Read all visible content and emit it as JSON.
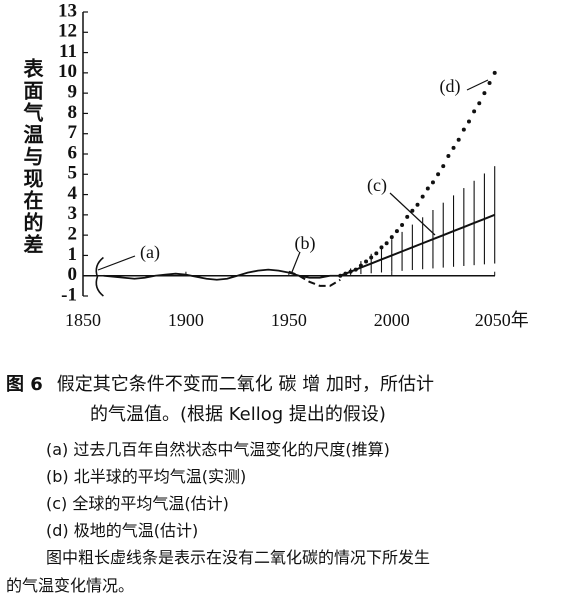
{
  "chart_data": {
    "type": "line",
    "y_label": "表面气温与现在的差",
    "xlim": [
      1850,
      2055
    ],
    "ylim": [
      -1,
      13
    ],
    "xticks": [
      1850,
      1900,
      1950,
      2000,
      {
        "value": 2050,
        "label": "2050年"
      }
    ],
    "yticks": [
      -1,
      0,
      1,
      2,
      3,
      4,
      5,
      6,
      7,
      8,
      9,
      10,
      11,
      12,
      13
    ],
    "series": [
      {
        "name": "(a)",
        "style": "range",
        "color": "#111",
        "x": [
          1857
        ],
        "low": [
          -1
        ],
        "high": [
          0.9
        ]
      },
      {
        "name": "(b)",
        "style": "solid",
        "color": "#111",
        "x": [
          1860,
          1865,
          1870,
          1875,
          1880,
          1885,
          1890,
          1895,
          1900,
          1905,
          1910,
          1915,
          1920,
          1925,
          1930,
          1935,
          1940,
          1945,
          1950,
          1955,
          1960,
          1965,
          1970,
          1975
        ],
        "values": [
          0,
          -0.05,
          -0.1,
          -0.15,
          -0.1,
          0,
          0.05,
          0.1,
          0.05,
          -0.05,
          -0.15,
          -0.2,
          -0.15,
          0,
          0.15,
          0.25,
          0.3,
          0.25,
          0.15,
          0,
          -0.1,
          -0.1,
          0,
          0
        ]
      },
      {
        "style": "dashed",
        "color": "#111",
        "x": [
          1950,
          1955,
          1960,
          1965,
          1970,
          1975
        ],
        "values": [
          0.2,
          0,
          -0.3,
          -0.5,
          -0.5,
          -0.2
        ]
      },
      {
        "name": "(c)",
        "style": "errorbar",
        "color": "#111",
        "x": [
          1975,
          1980,
          1985,
          1990,
          1995,
          2000,
          2005,
          2010,
          2015,
          2020,
          2025,
          2030,
          2035,
          2040,
          2045,
          2050
        ],
        "values": [
          0,
          0.2,
          0.4,
          0.6,
          0.8,
          1,
          1.2,
          1.4,
          1.6,
          1.8,
          2,
          2.2,
          2.4,
          2.6,
          2.8,
          3
        ],
        "errors": [
          0,
          0.16,
          0.32,
          0.48,
          0.64,
          0.8,
          0.96,
          1.12,
          1.28,
          1.44,
          1.6,
          1.76,
          1.92,
          2.08,
          2.24,
          2.4
        ]
      },
      {
        "name": "(d)",
        "style": "dotted",
        "color": "#111",
        "x": [
          1975,
          1977.5,
          1980,
          1982.5,
          1985,
          1987.5,
          1990,
          1992.5,
          1995,
          1997.5,
          2000,
          2002.5,
          2005,
          2007.5,
          2010,
          2012.5,
          2015,
          2017.5,
          2020,
          2022.5,
          2025,
          2027.5,
          2030,
          2032.5,
          2035,
          2037.5,
          2040,
          2042.5,
          2045,
          2047.5,
          2050
        ],
        "values": [
          0,
          0.1,
          0.2,
          0.3,
          0.5,
          0.7,
          0.9,
          1.1,
          1.4,
          1.6,
          1.9,
          2.2,
          2.5,
          2.9,
          3.2,
          3.5,
          3.9,
          4.3,
          4.6,
          5.0,
          5.4,
          5.9,
          6.3,
          6.7,
          7.2,
          7.6,
          8.1,
          8.5,
          9.0,
          9.5,
          10
        ]
      }
    ]
  },
  "caption": {
    "figure": "图 6",
    "title": [
      "假定其它条件不变而二氧化 碳 增 加时，所估计",
      "的气温值。(根据 Kellog 提出的假设)"
    ],
    "notes": [
      "(a) 过去几百年自然状态中气温变化的尺度(推算)",
      "(b) 北半球的平均气温(实测)",
      "(c) 全球的平均气温(估计)",
      "(d) 极地的气温(估计)"
    ],
    "remark": [
      "图中粗长虚线条是表示在没有二氧化碳的情况下所发生",
      "的气温变化情况。"
    ]
  }
}
